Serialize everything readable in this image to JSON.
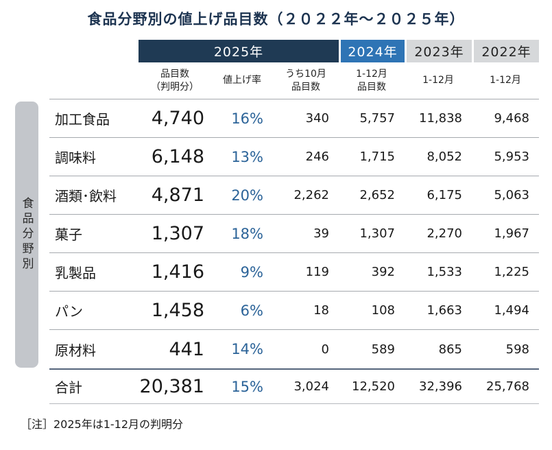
{
  "title": "食品分野別の値上げ品目数（２０２２年～２０２５年）",
  "note": "［注］2025年は1-12月の判明分",
  "colors": {
    "header_2025": "#1f3a54",
    "header_2024": "#2e74b5",
    "header_past": "#d6d8da",
    "rate_text": "#2b6398",
    "side_label_bg": "#c3c6cb"
  },
  "chart_data": {
    "type": "table",
    "title": "食品分野別の値上げ品目数（２０２２年～２０２５年）",
    "row_axis_label": "食品分野別",
    "year_headers": [
      {
        "label": "2025年",
        "span": 3
      },
      {
        "label": "2024年",
        "span": 1
      },
      {
        "label": "2023年",
        "span": 1
      },
      {
        "label": "2022年",
        "span": 1
      }
    ],
    "sub_headers": [
      "品目数\n（判明分）",
      "値上げ率",
      "うち10月\n品目数",
      "1-12月\n品目数",
      "1-12月",
      "1-12月"
    ],
    "rows": [
      {
        "category": "加工食品",
        "items_2025": "4,740",
        "rate_2025": "16%",
        "oct_2025": "340",
        "items_2024": "5,757",
        "items_2023": "11,838",
        "items_2022": "9,468"
      },
      {
        "category": "調味料",
        "items_2025": "6,148",
        "rate_2025": "13%",
        "oct_2025": "246",
        "items_2024": "1,715",
        "items_2023": "8,052",
        "items_2022": "5,953"
      },
      {
        "category": "酒類･飲料",
        "items_2025": "4,871",
        "rate_2025": "20%",
        "oct_2025": "2,262",
        "items_2024": "2,652",
        "items_2023": "6,175",
        "items_2022": "5,063"
      },
      {
        "category": "菓子",
        "items_2025": "1,307",
        "rate_2025": "18%",
        "oct_2025": "39",
        "items_2024": "1,307",
        "items_2023": "2,270",
        "items_2022": "1,967"
      },
      {
        "category": "乳製品",
        "items_2025": "1,416",
        "rate_2025": "9%",
        "oct_2025": "119",
        "items_2024": "392",
        "items_2023": "1,533",
        "items_2022": "1,225"
      },
      {
        "category": "パン",
        "items_2025": "1,458",
        "rate_2025": "6%",
        "oct_2025": "18",
        "items_2024": "108",
        "items_2023": "1,663",
        "items_2022": "1,494"
      },
      {
        "category": "原材料",
        "items_2025": "441",
        "rate_2025": "14%",
        "oct_2025": "0",
        "items_2024": "589",
        "items_2023": "865",
        "items_2022": "598"
      }
    ],
    "total_row": {
      "category": "合計",
      "items_2025": "20,381",
      "rate_2025": "15%",
      "oct_2025": "3,024",
      "items_2024": "12,520",
      "items_2023": "32,396",
      "items_2022": "25,768"
    },
    "note": "［注］2025年は1-12月の判明分"
  }
}
